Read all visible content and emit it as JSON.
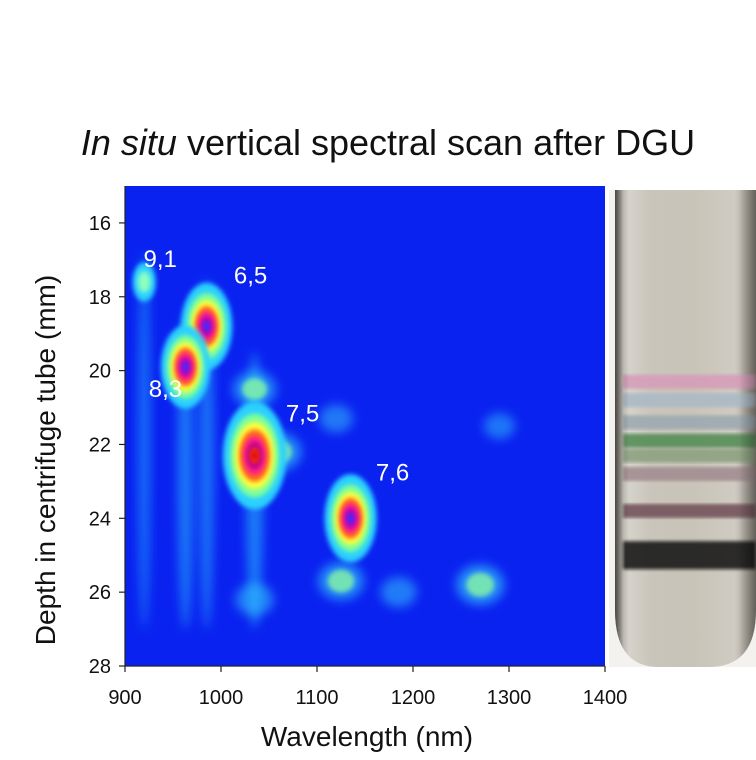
{
  "title": {
    "italic": "In situ",
    "rest": " vertical spectral scan after DGU"
  },
  "chart_data": {
    "type": "heatmap",
    "title": "In situ vertical spectral scan after DGU",
    "xlabel": "Wavelength (nm)",
    "ylabel": "Depth in centrifuge tube (mm)",
    "xlim": [
      900,
      1400
    ],
    "ylim": [
      15,
      28
    ],
    "y_inverted": true,
    "x_ticks": [
      900,
      1000,
      1100,
      1200,
      1300,
      1400
    ],
    "y_ticks": [
      16,
      18,
      20,
      22,
      24,
      26,
      28
    ],
    "grid": false,
    "colormap": "jet",
    "background_color": "#0a22f0",
    "peaks": [
      {
        "label": "9,1",
        "x": 920,
        "y": 17.6,
        "intensity": 0.25
      },
      {
        "label": "6,5",
        "x": 985,
        "y": 18.8,
        "intensity": 0.78
      },
      {
        "label": "8,3",
        "x": 963,
        "y": 19.9,
        "intensity": 0.72
      },
      {
        "label": "7,5",
        "x": 1035,
        "y": 22.3,
        "intensity": 1.0
      },
      {
        "label": "7,6",
        "x": 1135,
        "y": 24.0,
        "intensity": 0.8
      }
    ],
    "secondary_features": [
      {
        "x": 1060,
        "y": 22.2,
        "intensity": 0.45
      },
      {
        "x": 1125,
        "y": 25.7,
        "intensity": 0.45
      },
      {
        "x": 1270,
        "y": 25.8,
        "intensity": 0.5
      },
      {
        "x": 1035,
        "y": 20.5,
        "intensity": 0.4
      },
      {
        "x": 1035,
        "y": 26.2,
        "intensity": 0.3
      },
      {
        "x": 1185,
        "y": 26.0,
        "intensity": 0.25
      },
      {
        "x": 1120,
        "y": 21.3,
        "intensity": 0.2
      },
      {
        "x": 1290,
        "y": 21.5,
        "intensity": 0.15
      }
    ]
  },
  "tube_photo": {
    "glass_color": "#c8c4b8",
    "bands": [
      {
        "depth": 20.3,
        "color": "#d79ab8"
      },
      {
        "depth": 20.8,
        "color": "#a9b8c6"
      },
      {
        "depth": 21.4,
        "color": "#9aa8b0"
      },
      {
        "depth": 21.9,
        "color": "#4f8a52"
      },
      {
        "depth": 22.3,
        "color": "#8aa07e"
      },
      {
        "depth": 22.8,
        "color": "#a08a8e"
      },
      {
        "depth": 23.8,
        "color": "#6f4e56"
      },
      {
        "depth": 25.0,
        "color": "#0e0e0e"
      }
    ]
  }
}
